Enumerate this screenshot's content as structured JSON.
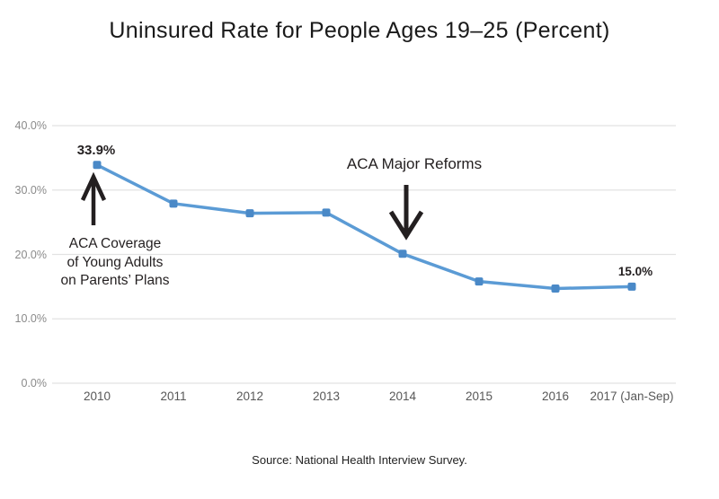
{
  "chart_data": {
    "type": "line",
    "title": "Uninsured Rate for People Ages 19–25 (Percent)",
    "source": "Source: National Health Interview Survey.",
    "categories": [
      "2010",
      "2011",
      "2012",
      "2013",
      "2014",
      "2015",
      "2016",
      "2017 (Jan-Sep)"
    ],
    "series": [
      {
        "name": "Uninsured rate, ages 19–25",
        "values": [
          33.9,
          27.9,
          26.4,
          26.5,
          20.1,
          15.8,
          14.7,
          15.0
        ]
      }
    ],
    "point_labels": [
      {
        "index": 0,
        "text": "33.9%"
      },
      {
        "index": 7,
        "text": "15.0%"
      }
    ],
    "y_ticks": [
      {
        "value": 40,
        "label": "40.0%"
      },
      {
        "value": 30,
        "label": "30.0%"
      },
      {
        "value": 20,
        "label": "20.0%"
      },
      {
        "value": 10,
        "label": "10.0%"
      },
      {
        "value": 0,
        "label": "0.0%"
      }
    ],
    "ylim": [
      0,
      40
    ],
    "grid": "horizontal",
    "legend": "none",
    "annotations": [
      {
        "id": "young-adults",
        "text": "ACA Coverage\nof Young Adults\non Parents’ Plans",
        "arrow": "up",
        "target_category": "2010"
      },
      {
        "id": "major-reforms",
        "text": "ACA Major Reforms",
        "arrow": "down",
        "target_category": "2014"
      }
    ],
    "colors": {
      "line": "#5B9BD5",
      "marker": "#4A89C7",
      "grid": "#E2E2E2",
      "y_tick_text": "#8A8A8A",
      "x_tick_text": "#575757",
      "annotation_text": "#231F20",
      "arrow": "#231F20",
      "title_text": "#1A1A1A"
    }
  }
}
